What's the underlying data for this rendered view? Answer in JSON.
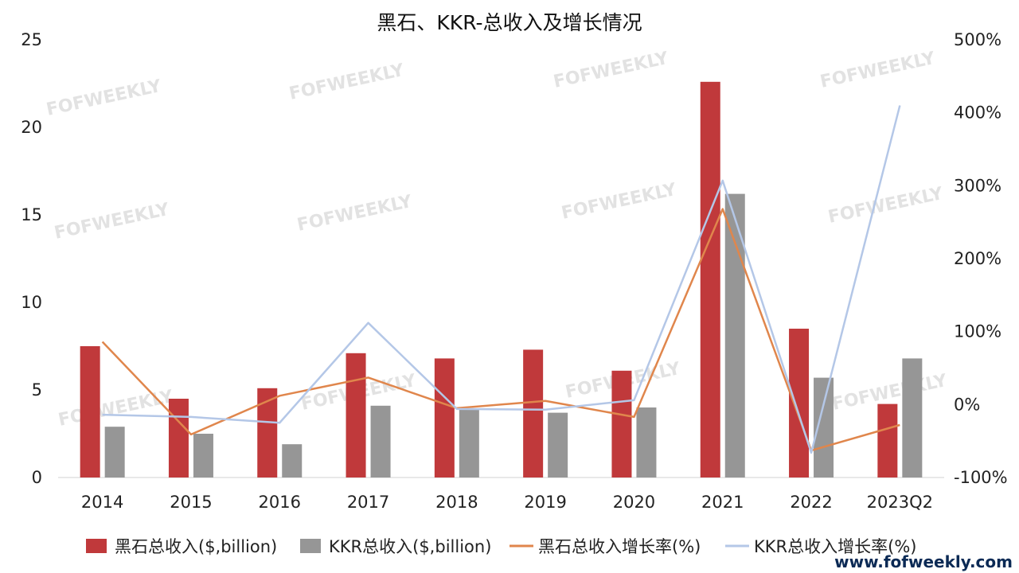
{
  "chart_data": {
    "type": "bar",
    "title": "黑石、KKR-总收入及增长情况",
    "categories": [
      "2014",
      "2015",
      "2016",
      "2017",
      "2018",
      "2019",
      "2020",
      "2021",
      "2022",
      "2023Q2"
    ],
    "ylim": [
      0,
      25
    ],
    "yticks": [
      "0",
      "5",
      "10",
      "15",
      "20",
      "25"
    ],
    "y2lim": [
      -100,
      500
    ],
    "y2ticks": [
      "-100%",
      "0%",
      "100%",
      "200%",
      "300%",
      "400%",
      "500%"
    ],
    "series": [
      {
        "name": "黑石总收入($,billion)",
        "type": "bar",
        "axis": "left",
        "color": "#c0393b",
        "values": [
          7.5,
          4.5,
          5.1,
          7.1,
          6.8,
          7.3,
          6.1,
          22.6,
          8.5,
          4.2
        ]
      },
      {
        "name": "KKR总收入($,billion)",
        "type": "bar",
        "axis": "left",
        "color": "#969696",
        "values": [
          2.9,
          2.5,
          1.9,
          4.1,
          3.9,
          3.7,
          4.0,
          16.2,
          5.7,
          6.8
        ]
      },
      {
        "name": "黑石总收入增长率(%)",
        "type": "line",
        "axis": "right",
        "color": "#e0864c",
        "values": [
          86,
          -41,
          12,
          37,
          -5,
          5,
          -17,
          268,
          -63,
          -28
        ]
      },
      {
        "name": "KKR总收入增长率(%)",
        "type": "line",
        "axis": "right",
        "color": "#b4c7e7",
        "values": [
          -14,
          -17,
          -25,
          112,
          -6,
          -7,
          6,
          307,
          -66,
          410
        ]
      }
    ]
  },
  "watermark": "FOFWEEKLY",
  "site": "www.fofweekly.com"
}
